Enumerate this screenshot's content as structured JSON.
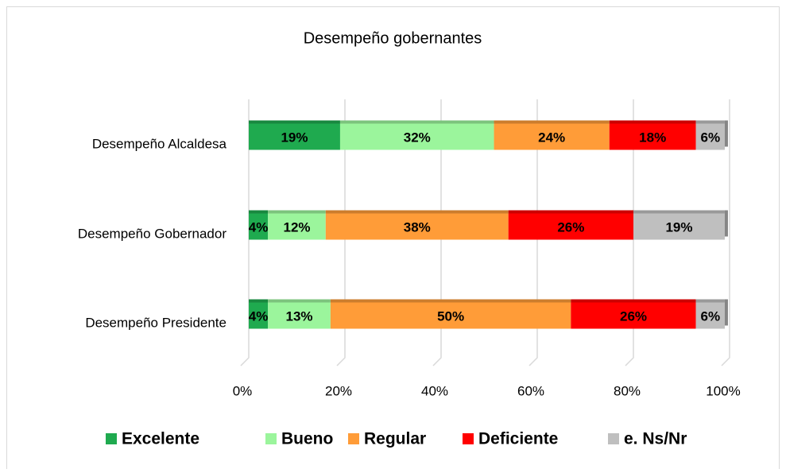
{
  "chart_data": {
    "type": "stacked_bar_horizontal",
    "title": "Desempeño gobernantes",
    "categories": [
      "Desempeño Alcaldesa",
      "Desempeño Gobernador",
      "Desempeño Presidente"
    ],
    "series": [
      {
        "name": "Excelente",
        "color": "#1faa4f",
        "values": [
          19,
          4,
          4
        ],
        "value_labels": [
          "19%",
          "4%",
          "4%"
        ]
      },
      {
        "name": "Bueno",
        "color": "#9bf59c",
        "values": [
          32,
          12,
          13
        ],
        "value_labels": [
          "32%",
          "12%",
          "13%"
        ]
      },
      {
        "name": "Regular",
        "color": "#ff9c38",
        "values": [
          24,
          38,
          50
        ],
        "value_labels": [
          "24%",
          "38%",
          "50%"
        ]
      },
      {
        "name": "Deficiente",
        "color": "#ff0000",
        "values": [
          18,
          26,
          26
        ],
        "value_labels": [
          "18%",
          "26%",
          "26%"
        ]
      },
      {
        "name": "e. Ns/Nr",
        "color": "#bfbfbf",
        "values": [
          6,
          19,
          6
        ],
        "value_labels": [
          "6%",
          "19%",
          "6%"
        ]
      }
    ],
    "xlim": [
      0,
      100
    ],
    "xticks": [
      {
        "value": 0,
        "label": "0%"
      },
      {
        "value": 20,
        "label": "20%"
      },
      {
        "value": 40,
        "label": "40%"
      },
      {
        "value": 60,
        "label": "60%"
      },
      {
        "value": 80,
        "label": "80%"
      },
      {
        "value": 100,
        "label": "100%"
      }
    ],
    "grid": true,
    "legend": "bottom"
  }
}
